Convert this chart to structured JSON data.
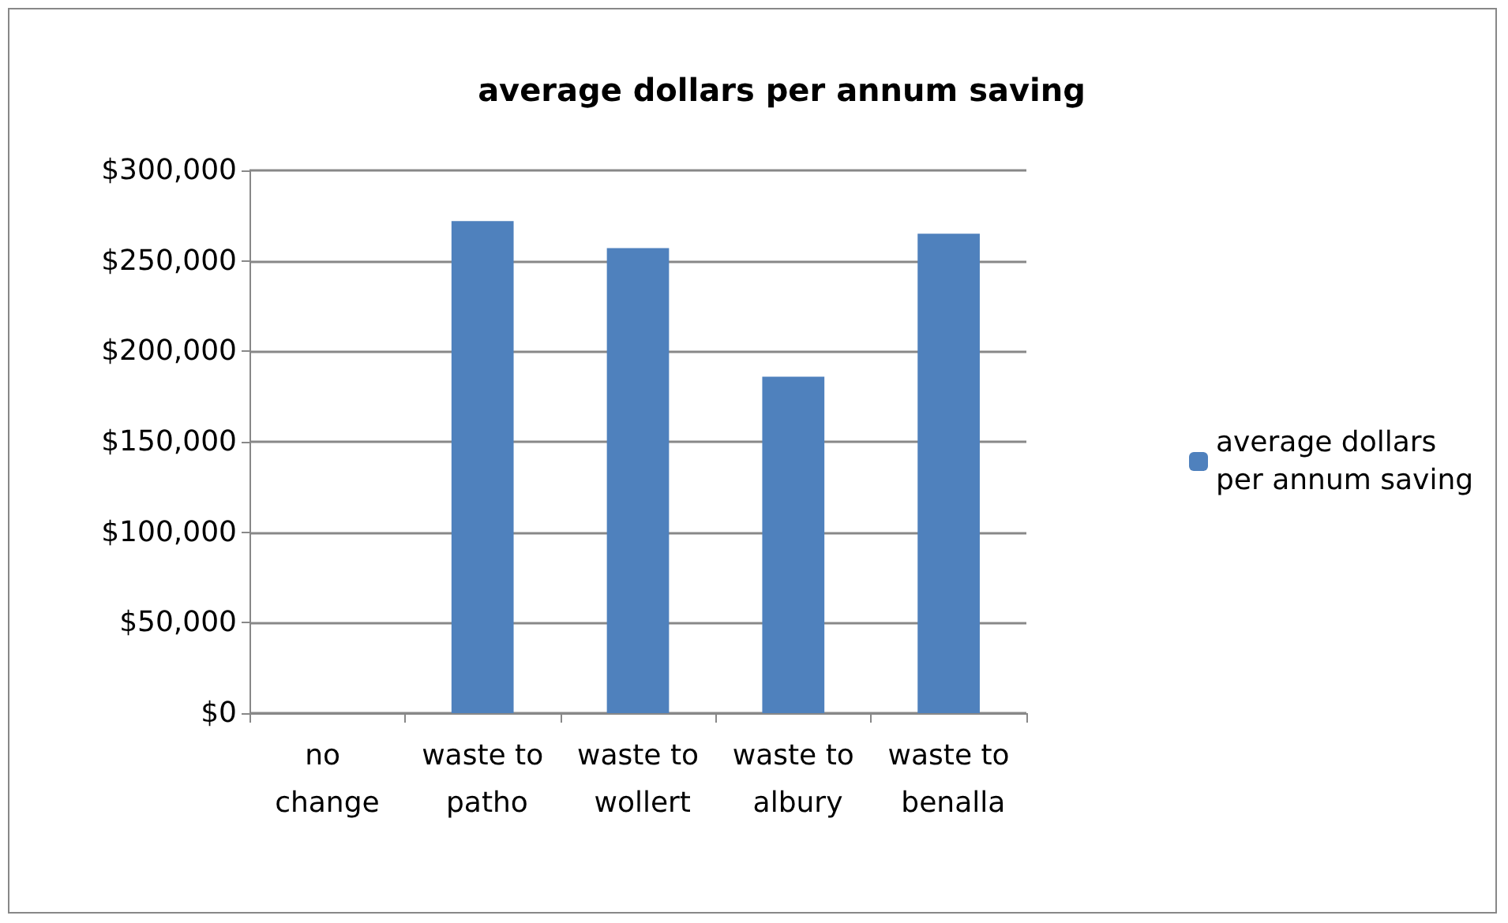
{
  "chart_data": {
    "type": "bar",
    "title": "average dollars per annum saving",
    "categories": [
      "no change",
      "waste to patho",
      "waste to wollert",
      "waste to albury",
      "waste to benalla"
    ],
    "series": [
      {
        "name": "average dollars per annum saving",
        "color": "#4f81bd",
        "values": [
          0,
          272000,
          257000,
          186000,
          265000
        ]
      }
    ],
    "ylim": [
      0,
      300000
    ],
    "yticks": [
      {
        "value": 0,
        "label": "$0"
      },
      {
        "value": 50000,
        "label": "$50,000"
      },
      {
        "value": 100000,
        "label": "$100,000"
      },
      {
        "value": 150000,
        "label": "$150,000"
      },
      {
        "value": 200000,
        "label": "$200,000"
      },
      {
        "value": 250000,
        "label": "$250,000"
      },
      {
        "value": 300000,
        "label": "$300,000"
      }
    ],
    "grid": "y",
    "legend": "right"
  }
}
